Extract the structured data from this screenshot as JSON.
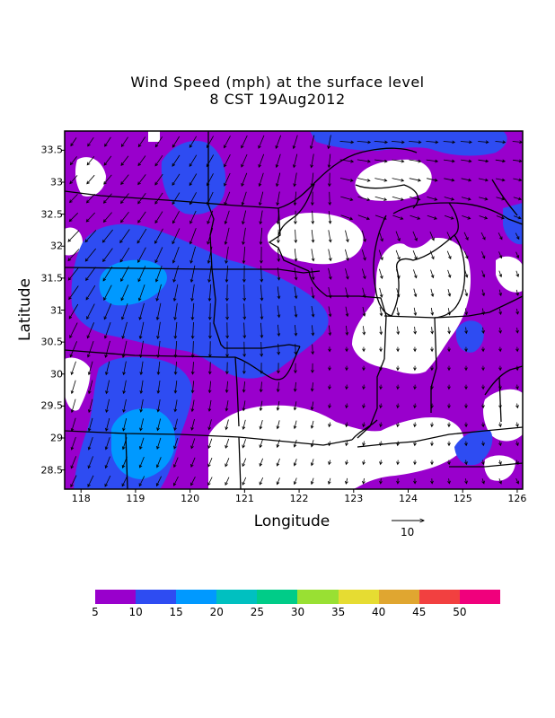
{
  "title": "Wind Speed (mph) at the surface level",
  "subtitle": "8 CST 19Aug2012",
  "chart_data": {
    "type": "map",
    "xlabel": "Longitude",
    "ylabel": "Latitude",
    "xlim": [
      117.7,
      126.1
    ],
    "ylim": [
      28.2,
      33.8
    ],
    "x_ticks": [
      "118",
      "119",
      "120",
      "121",
      "122",
      "123",
      "124",
      "125",
      "126"
    ],
    "y_ticks": [
      "28.5",
      "29",
      "29.5",
      "30",
      "30.5",
      "31",
      "31.5",
      "32",
      "32.5",
      "33",
      "33.5"
    ],
    "reference_vector": {
      "label": "10",
      "speed": 10
    },
    "colorbar": {
      "labels": [
        "5",
        "10",
        "15",
        "20",
        "25",
        "30",
        "35",
        "40",
        "45",
        "50"
      ],
      "bins": [
        5,
        10,
        15,
        20,
        25,
        30,
        35,
        40,
        45,
        50,
        55
      ],
      "colors": [
        "#9900cc",
        "#2e4cf2",
        "#0099ff",
        "#00c0c0",
        "#00cc88",
        "#99e033",
        "#e6dc32",
        "#e0a630",
        "#f24040",
        "#f0007c"
      ]
    },
    "wind_speed_regions": [
      {
        "level": 5,
        "color": "#9900cc",
        "description": "background"
      },
      {
        "level": 10,
        "color": "#2e4cf2",
        "location": "north-central"
      },
      {
        "level": 10,
        "color": "#2e4cf2",
        "location": "west"
      },
      {
        "level": 10,
        "color": "#2e4cf2",
        "location": "southwest"
      },
      {
        "level": 10,
        "color": "#2e4cf2",
        "location": "north-east"
      },
      {
        "level": 10,
        "color": "#2e4cf2",
        "location": "east"
      },
      {
        "level": 15,
        "color": "#0099ff",
        "location": "west"
      },
      {
        "level": 15,
        "color": "#0099ff",
        "location": "southwest"
      }
    ]
  }
}
